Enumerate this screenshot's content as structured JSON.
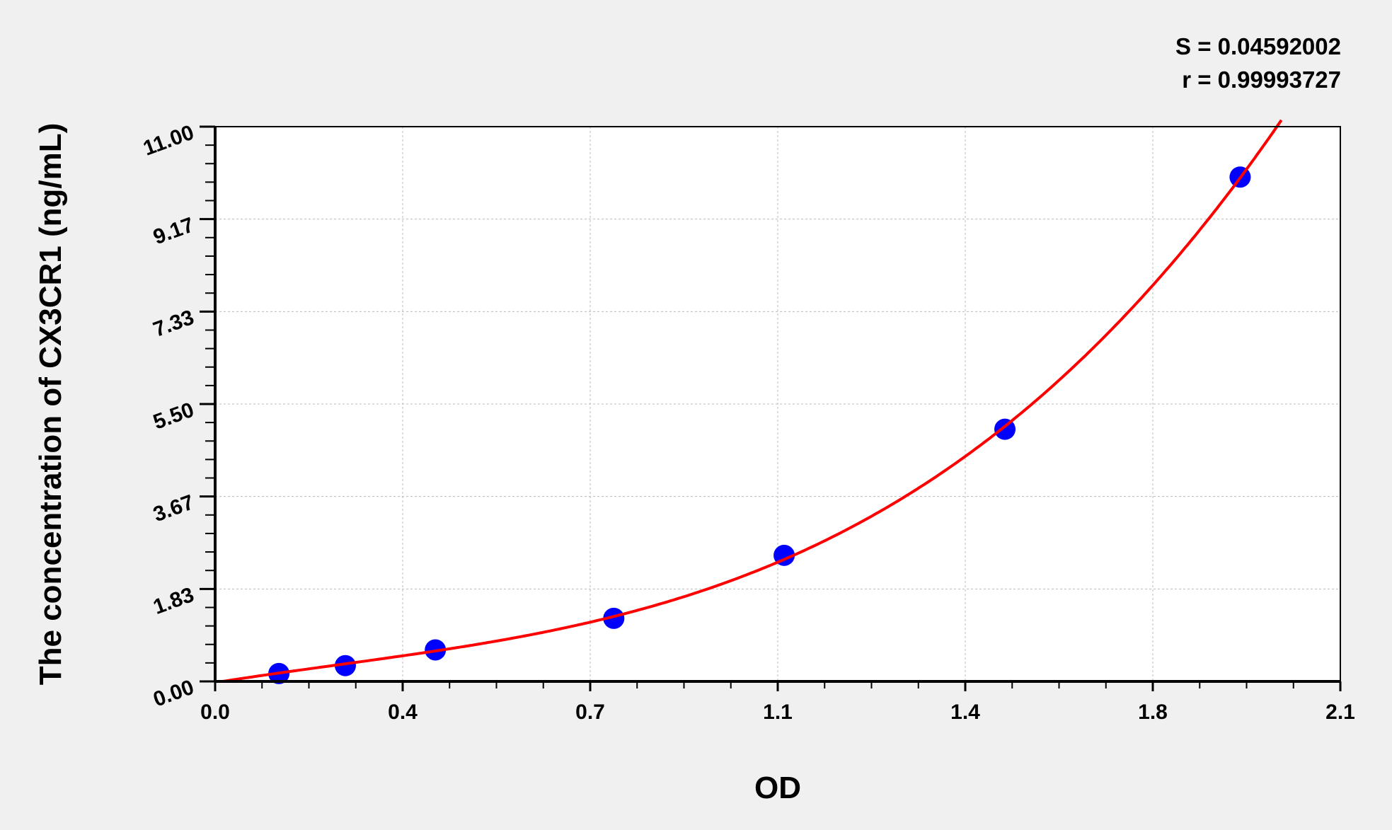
{
  "chart_data": {
    "type": "scatter",
    "title": "",
    "xlabel": "OD",
    "ylabel": "The concentration of CX3CR1 (ng/mL)",
    "xlim": [
      0,
      2.1
    ],
    "ylim": [
      0,
      11
    ],
    "x_ticks": [
      0.0,
      0.35,
      0.7,
      1.05,
      1.4,
      1.75,
      2.1
    ],
    "x_tick_labels": [
      "0.0",
      "0.4",
      "0.7",
      "1.1",
      "1.4",
      "1.8",
      "2.1"
    ],
    "y_ticks": [
      0,
      1.833,
      3.667,
      5.5,
      7.333,
      9.167,
      11
    ],
    "y_tick_labels": [
      "0.00",
      "1.83",
      "3.67",
      "5.50",
      "7.33",
      "9.17",
      "11.00"
    ],
    "grid": true,
    "annotations": [
      "S = 0.04592002",
      "r = 0.99993727"
    ],
    "series": [
      {
        "type": "scatter",
        "color": "#0000ff",
        "x": [
          0.119,
          0.243,
          0.411,
          0.744,
          1.062,
          1.474,
          1.913
        ],
        "y": [
          0.156,
          0.313,
          0.625,
          1.25,
          2.5,
          5.0,
          10.0
        ]
      },
      {
        "type": "fit-line",
        "color": "#ff0000"
      }
    ]
  }
}
